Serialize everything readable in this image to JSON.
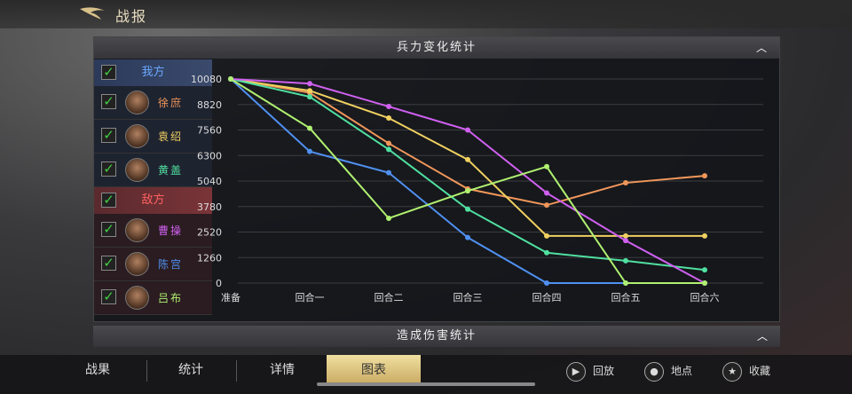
{
  "header": {
    "title": "战报",
    "back_icon": "back-arrow-icon"
  },
  "panel": {
    "title": "兵力变化统计",
    "collapse_icon": "chevron-up-icon"
  },
  "panel2": {
    "title": "造成伤害统计"
  },
  "sidebar": {
    "ally": {
      "label": "我方",
      "checked": true,
      "members": [
        {
          "name": "徐庶",
          "color": "#f0965a",
          "checked": true
        },
        {
          "name": "袁绍",
          "color": "#f0d060",
          "checked": true
        },
        {
          "name": "黄盖",
          "color": "#50e0a0",
          "checked": true
        }
      ]
    },
    "enemy": {
      "label": "敌方",
      "checked": true,
      "members": [
        {
          "name": "曹操",
          "color": "#d060f0",
          "checked": true
        },
        {
          "name": "陈宫",
          "color": "#5090f0",
          "checked": true
        },
        {
          "name": "吕布",
          "color": "#b0f070",
          "checked": true
        }
      ]
    }
  },
  "chart_data": {
    "type": "line",
    "categories": [
      "准备",
      "回合一",
      "回合二",
      "回合三",
      "回合四",
      "回合五",
      "回合六"
    ],
    "yticks": [
      0,
      1260,
      2520,
      3780,
      5040,
      6300,
      7560,
      8820,
      10080
    ],
    "ylim": [
      0,
      10080
    ],
    "grid": true,
    "series": [
      {
        "name": "徐庶",
        "color": "#f0965a",
        "values": [
          10080,
          9400,
          6900,
          4650,
          3850,
          4950,
          5300
        ]
      },
      {
        "name": "袁绍",
        "color": "#f0d060",
        "values": [
          10080,
          9500,
          8150,
          6100,
          2330,
          2330,
          2330
        ]
      },
      {
        "name": "黄盖",
        "color": "#50e0a0",
        "values": [
          10080,
          9200,
          6600,
          3650,
          1500,
          1100,
          650
        ]
      },
      {
        "name": "曹操",
        "color": "#d060f0",
        "values": [
          10080,
          9850,
          8720,
          7560,
          4450,
          2100,
          0
        ]
      },
      {
        "name": "陈宫",
        "color": "#5090f0",
        "values": [
          10080,
          6500,
          5450,
          2250,
          0,
          0,
          0
        ]
      },
      {
        "name": "吕布",
        "color": "#b0f070",
        "values": [
          10080,
          7650,
          3200,
          4550,
          5750,
          0,
          0
        ]
      }
    ]
  },
  "bottom": {
    "tabs": [
      "战果",
      "统计",
      "详情",
      "图表"
    ],
    "active_tab": "图表",
    "actions": [
      {
        "label": "回放",
        "icon": "play-icon"
      },
      {
        "label": "地点",
        "icon": "location-pin-icon"
      },
      {
        "label": "收藏",
        "icon": "star-icon"
      }
    ]
  }
}
